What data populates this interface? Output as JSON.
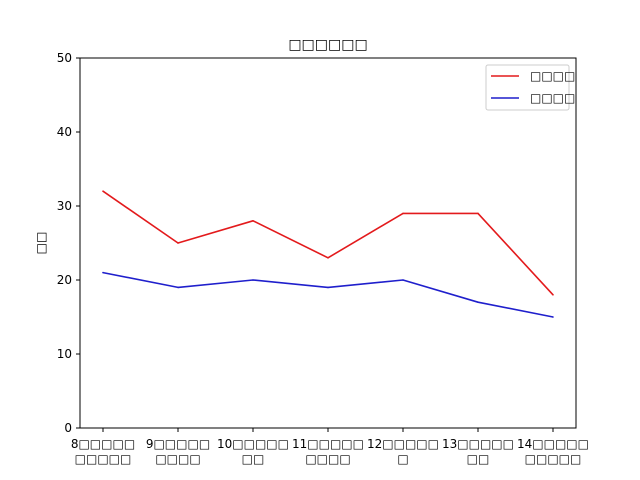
{
  "chart_data": {
    "type": "line",
    "title": "□□□□□□",
    "xlabel": "",
    "ylabel": "□□",
    "ylim": [
      0,
      50
    ],
    "yticks": [
      0,
      10,
      20,
      30,
      40,
      50
    ],
    "categories": [
      [
        "8□□□□□",
        "□□□□□"
      ],
      [
        "9□□□□□",
        "□□□□"
      ],
      [
        "10□□□□□",
        "□□"
      ],
      [
        "11□□□□□",
        "□□□□"
      ],
      [
        "12□□□□□",
        "□"
      ],
      [
        "13□□□□□",
        "□□"
      ],
      [
        "14□□□□□",
        "□□□□□"
      ]
    ],
    "series": [
      {
        "name": "□□□□",
        "color": "#e31a1c",
        "values": [
          32,
          25,
          28,
          23,
          29,
          29,
          18
        ]
      },
      {
        "name": "□□□□",
        "color": "#1f1fcc",
        "values": [
          21,
          19,
          20,
          19,
          20,
          17,
          15
        ]
      }
    ],
    "legend": "top-right",
    "grid": false
  }
}
